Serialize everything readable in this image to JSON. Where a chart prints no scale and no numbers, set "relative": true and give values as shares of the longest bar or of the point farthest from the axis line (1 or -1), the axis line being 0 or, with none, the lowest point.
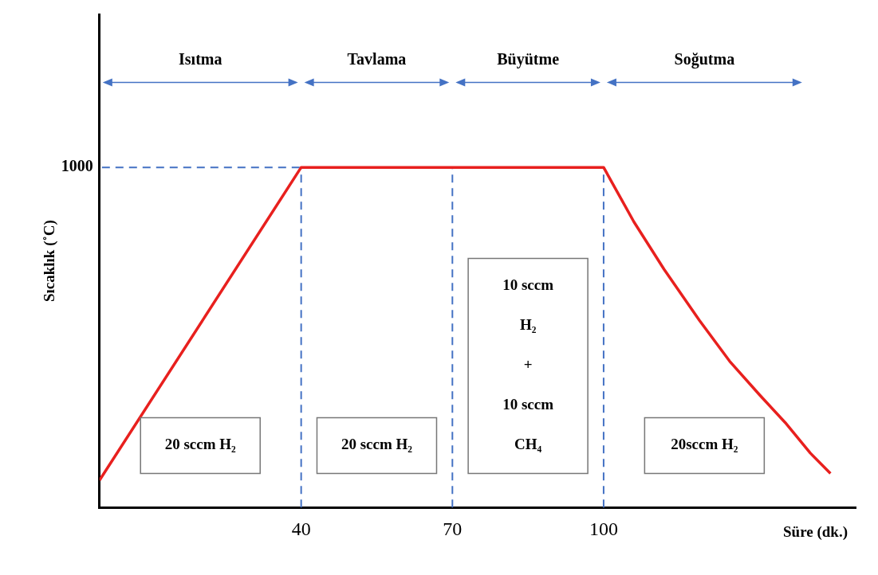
{
  "chart_data": {
    "type": "line",
    "relative": true,
    "xlabel": "Süre (dk.)",
    "ylabel": "Sıcaklık (˚C)",
    "x": [
      0,
      40,
      70,
      100,
      106,
      112,
      119,
      125,
      131,
      136,
      141,
      145
    ],
    "series": [
      {
        "color": "#e8201e",
        "values": [
          0.08,
          1,
          1,
          1,
          0.84,
          0.7,
          0.55,
          0.43,
          0.33,
          0.25,
          0.16,
          0.1
        ]
      }
    ],
    "xlim": [
      0,
      150
    ],
    "xticks": [
      40,
      70,
      100
    ],
    "grid": false,
    "legend": false,
    "marker": "none",
    "line_style": "solid",
    "ref_lines": [
      {
        "axis": "y",
        "value": 1,
        "label": "1000",
        "color": "#4472c4",
        "line_style": "dashed"
      },
      {
        "axis": "x",
        "value": 40,
        "color": "#4472c4",
        "line_style": "dashed"
      },
      {
        "axis": "x",
        "value": 70,
        "color": "#4472c4",
        "line_style": "dashed"
      },
      {
        "axis": "x",
        "value": 100,
        "color": "#4472c4",
        "line_style": "dashed"
      }
    ],
    "annotations": [
      "Isıtma",
      "Tavlama",
      "Büyütme",
      "Soğutma",
      "20 sccm H₂",
      "20 sccm H₂",
      "10 sccm\nH₂\n+\n10 sccm\nCH₄",
      "20sccm H₂"
    ]
  }
}
